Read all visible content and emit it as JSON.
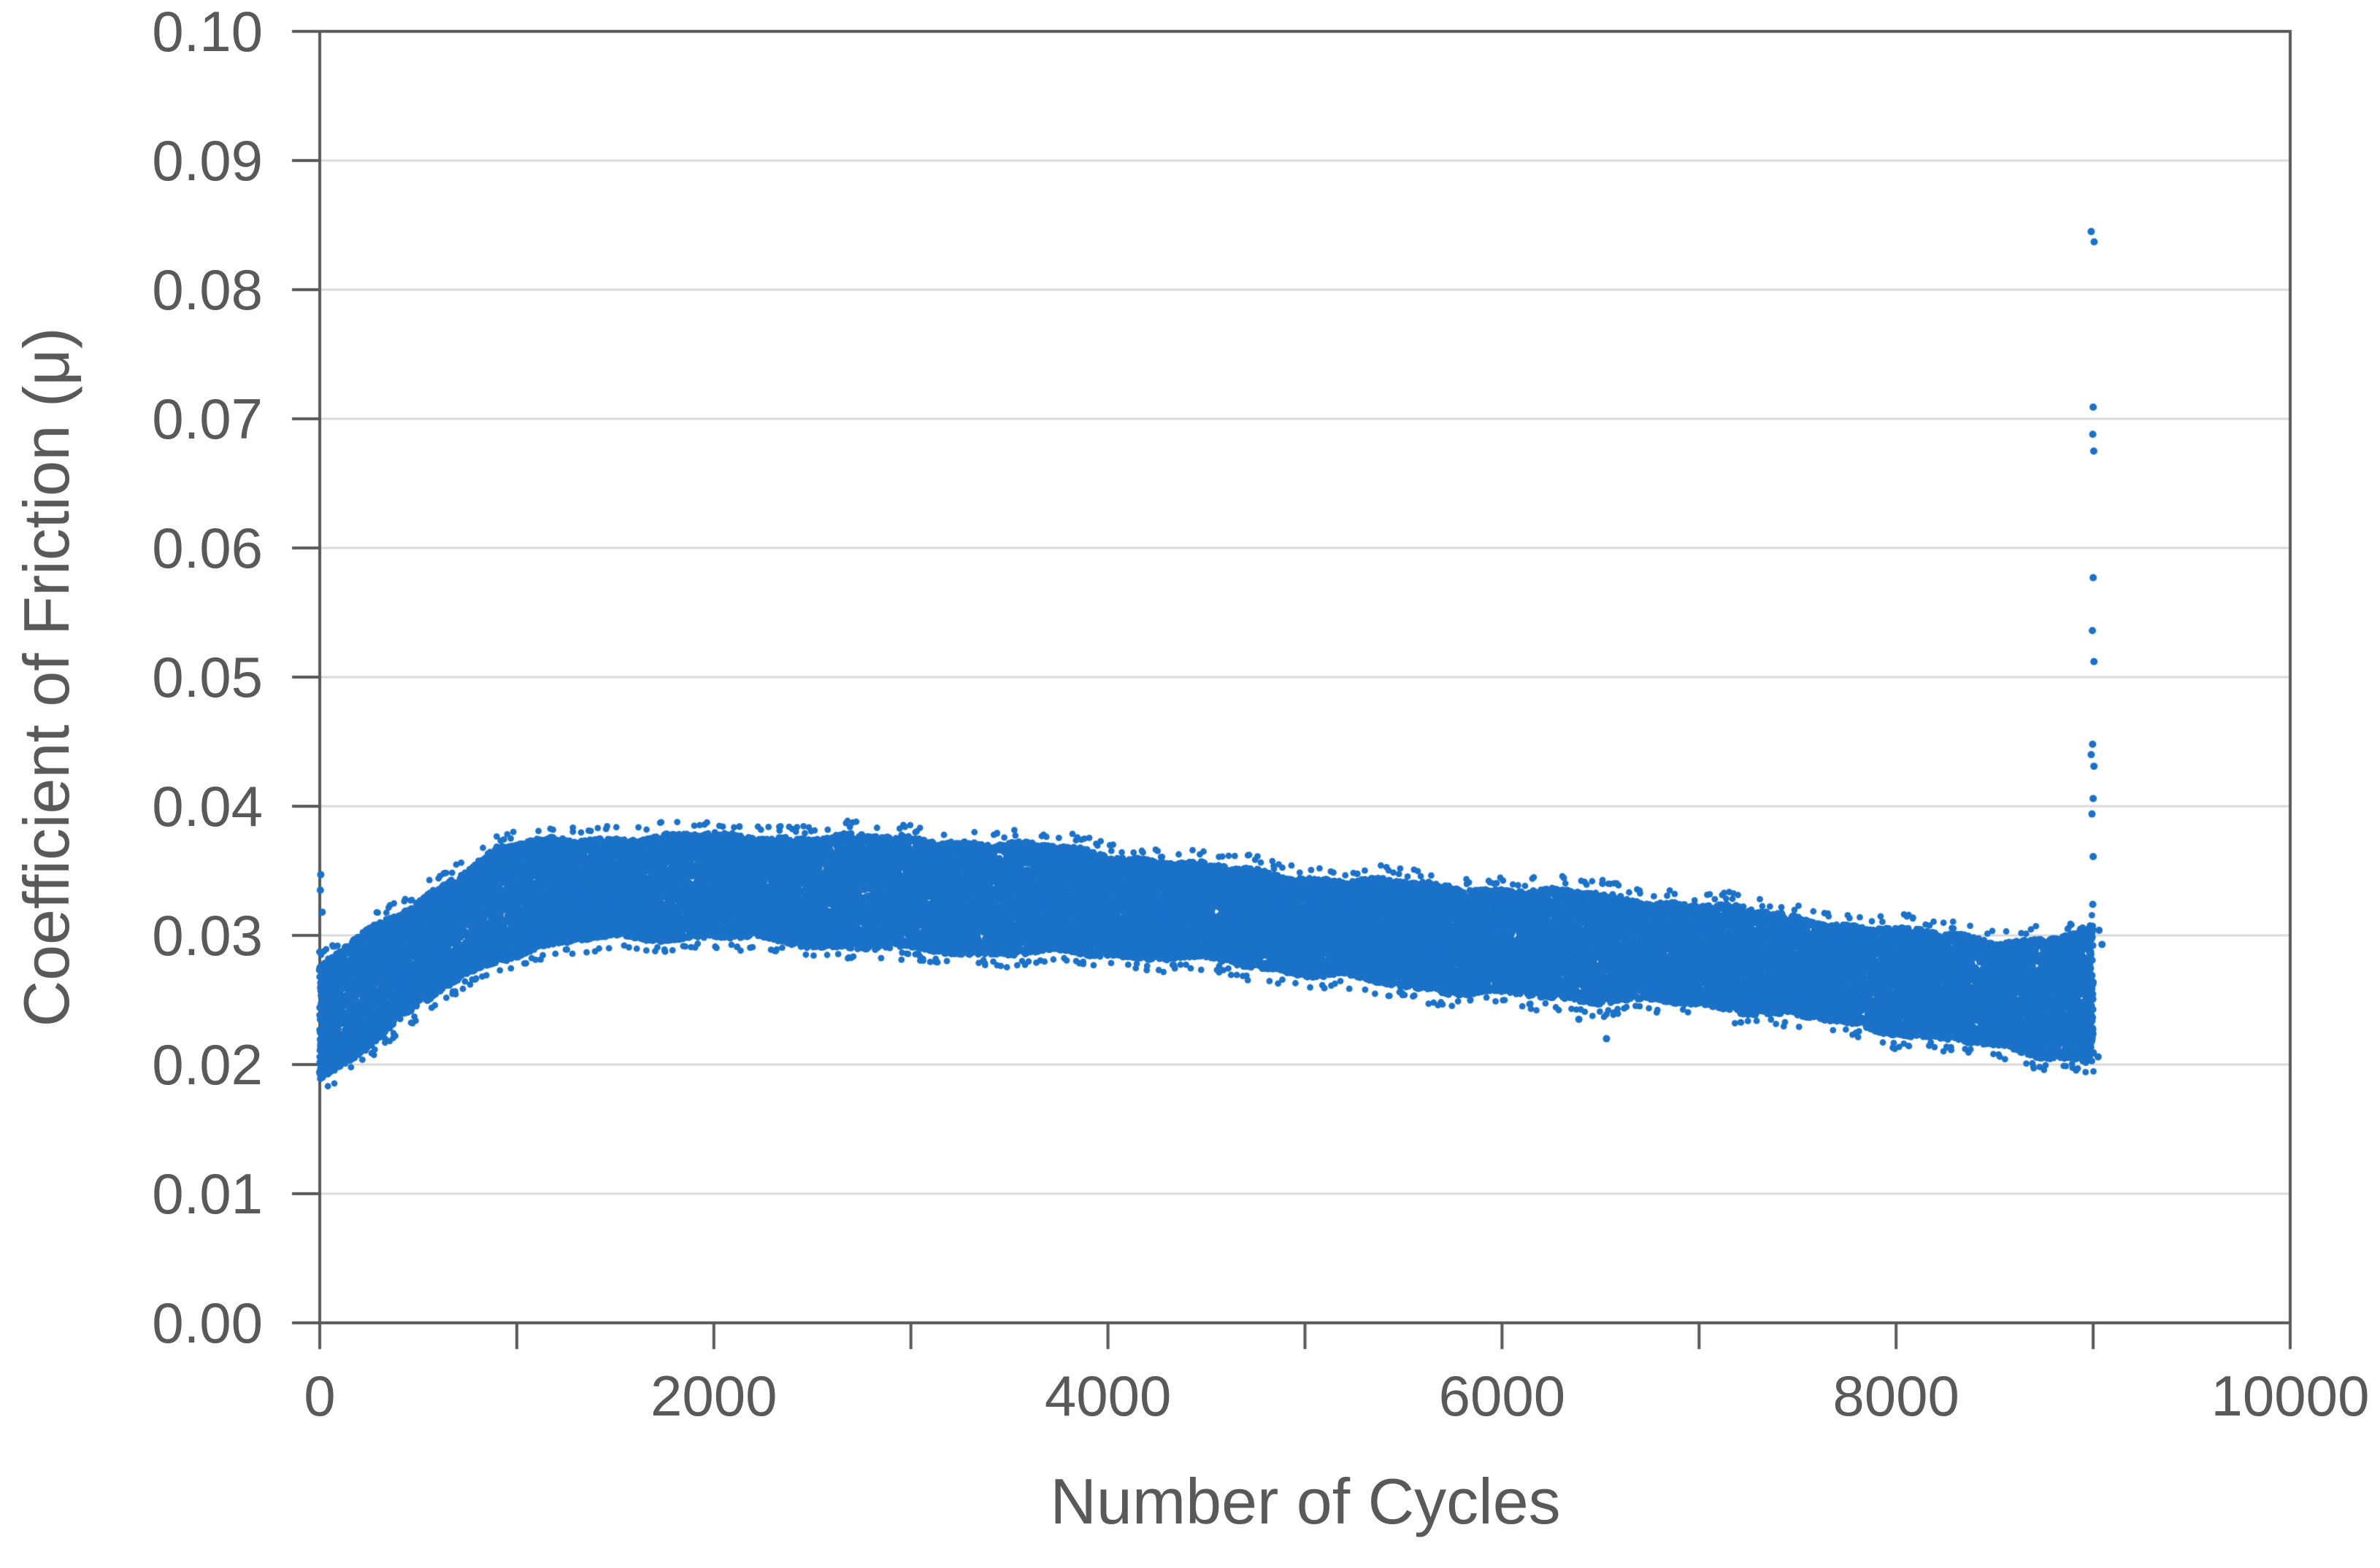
{
  "figure": {
    "background_color": "#ffffff"
  },
  "chart_data": {
    "type": "scatter",
    "title": "",
    "xlabel": "Number of Cycles",
    "ylabel": "Coefficient of Friction (μ)",
    "xlim": [
      0,
      10000
    ],
    "ylim": [
      0.0,
      0.1
    ],
    "grid": "horizontal",
    "legend_position": "none",
    "marker_color": "#1b72c8",
    "axis_color": "#595959",
    "gridline_color": "#d9d9d9",
    "x_ticks": {
      "major": [
        {
          "value": 0,
          "label": "0"
        },
        {
          "value": 2000,
          "label": "2000"
        },
        {
          "value": 4000,
          "label": "4000"
        },
        {
          "value": 6000,
          "label": "6000"
        },
        {
          "value": 8000,
          "label": "8000"
        },
        {
          "value": 10000,
          "label": "10000"
        }
      ],
      "minor_values": [
        1000,
        3000,
        5000,
        7000,
        9000
      ]
    },
    "y_ticks": [
      {
        "value": 0.0,
        "label": "0.00"
      },
      {
        "value": 0.01,
        "label": "0.01"
      },
      {
        "value": 0.02,
        "label": "0.02"
      },
      {
        "value": 0.03,
        "label": "0.03"
      },
      {
        "value": 0.04,
        "label": "0.04"
      },
      {
        "value": 0.05,
        "label": "0.05"
      },
      {
        "value": 0.06,
        "label": "0.06"
      },
      {
        "value": 0.07,
        "label": "0.07"
      },
      {
        "value": 0.08,
        "label": "0.08"
      },
      {
        "value": 0.09,
        "label": "0.09"
      },
      {
        "value": 0.1,
        "label": "0.10"
      }
    ],
    "series": [
      {
        "name": "coefficient-of-friction",
        "kind": "dense-band",
        "x_start": 0,
        "x_end": 9000,
        "band_envelope": [
          {
            "x": 0,
            "low": 0.0189,
            "high": 0.0272
          },
          {
            "x": 150,
            "low": 0.0207,
            "high": 0.029
          },
          {
            "x": 300,
            "low": 0.0226,
            "high": 0.0305
          },
          {
            "x": 500,
            "low": 0.0247,
            "high": 0.0325
          },
          {
            "x": 700,
            "low": 0.0265,
            "high": 0.0347
          },
          {
            "x": 900,
            "low": 0.0281,
            "high": 0.0366
          },
          {
            "x": 1100,
            "low": 0.0289,
            "high": 0.0374
          },
          {
            "x": 1400,
            "low": 0.0293,
            "high": 0.0379
          },
          {
            "x": 2000,
            "low": 0.0296,
            "high": 0.0381
          },
          {
            "x": 2600,
            "low": 0.0294,
            "high": 0.0377
          },
          {
            "x": 3200,
            "low": 0.029,
            "high": 0.0371
          },
          {
            "x": 4000,
            "low": 0.0282,
            "high": 0.0362
          },
          {
            "x": 4800,
            "low": 0.0273,
            "high": 0.0352
          },
          {
            "x": 5600,
            "low": 0.0262,
            "high": 0.0342
          },
          {
            "x": 6400,
            "low": 0.025,
            "high": 0.033
          },
          {
            "x": 7200,
            "low": 0.0239,
            "high": 0.0318
          },
          {
            "x": 8000,
            "low": 0.0227,
            "high": 0.0307
          },
          {
            "x": 8600,
            "low": 0.0214,
            "high": 0.03
          },
          {
            "x": 8900,
            "low": 0.0206,
            "high": 0.0302
          },
          {
            "x": 9000,
            "low": 0.0199,
            "high": 0.0308
          }
        ],
        "outlier_points": [
          [
            8990,
            0.0845
          ],
          [
            9005,
            0.0837
          ],
          [
            9000,
            0.0709
          ],
          [
            8998,
            0.0688
          ],
          [
            9003,
            0.0675
          ],
          [
            9000,
            0.0577
          ],
          [
            8996,
            0.0536
          ],
          [
            9004,
            0.0512
          ],
          [
            8997,
            0.0448
          ],
          [
            8990,
            0.044
          ],
          [
            9004,
            0.0431
          ],
          [
            9000,
            0.0406
          ],
          [
            8994,
            0.0394
          ],
          [
            9000,
            0.0361
          ],
          [
            8998,
            0.0324
          ],
          [
            9030,
            0.0304
          ],
          [
            9045,
            0.0293
          ],
          [
            9025,
            0.0206
          ],
          [
            5,
            0.0347
          ],
          [
            3,
            0.0335
          ],
          [
            12,
            0.0318
          ],
          [
            520,
            0.0252
          ],
          [
            610,
            0.0257
          ],
          [
            6390,
            0.0235
          ],
          [
            6530,
            0.022
          ]
        ]
      }
    ]
  }
}
